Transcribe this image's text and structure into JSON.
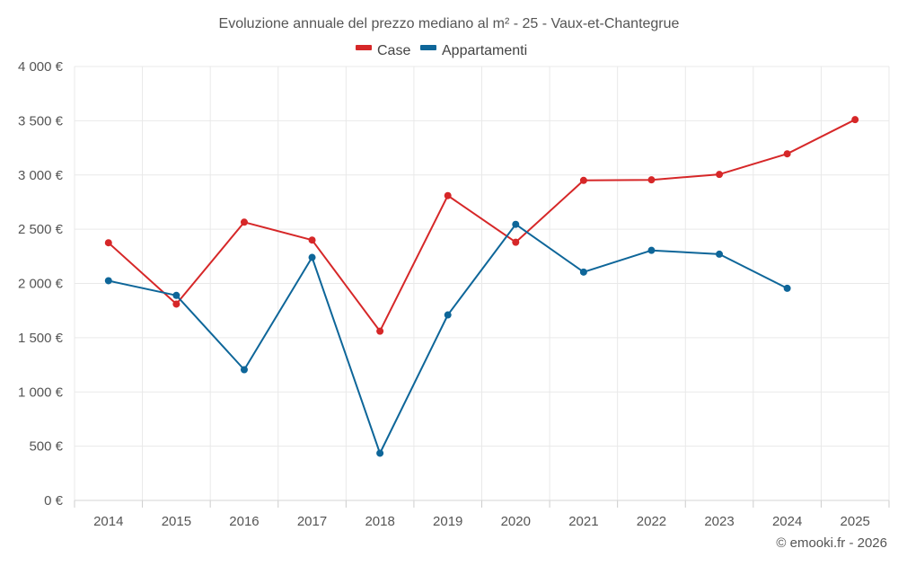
{
  "chart_data": {
    "type": "line",
    "title": "Evoluzione annuale del prezzo mediano al m² - 25 - Vaux-et-Chantegrue",
    "categories": [
      "2014",
      "2015",
      "2016",
      "2017",
      "2018",
      "2019",
      "2020",
      "2021",
      "2022",
      "2023",
      "2024",
      "2025"
    ],
    "y_ticks": [
      "0 €",
      "500 €",
      "1 000 €",
      "1 500 €",
      "2 000 €",
      "2 500 €",
      "3 000 €",
      "3 500 €",
      "4 000 €"
    ],
    "ylim": [
      0,
      4000
    ],
    "y_step": 500,
    "grid": true,
    "legend_position": "top-center",
    "xlabel": "",
    "ylabel": "",
    "series": [
      {
        "name": "Case",
        "color": "#d62728",
        "values": [
          2375,
          1810,
          2565,
          2400,
          1560,
          2810,
          2380,
          2950,
          2955,
          3005,
          3195,
          3510
        ]
      },
      {
        "name": "Appartamenti",
        "color": "#0e6699",
        "values": [
          2025,
          1890,
          1205,
          2240,
          435,
          1710,
          2545,
          2105,
          2305,
          2270,
          1955,
          null
        ]
      }
    ]
  },
  "credit": "© emooki.fr - 2026"
}
